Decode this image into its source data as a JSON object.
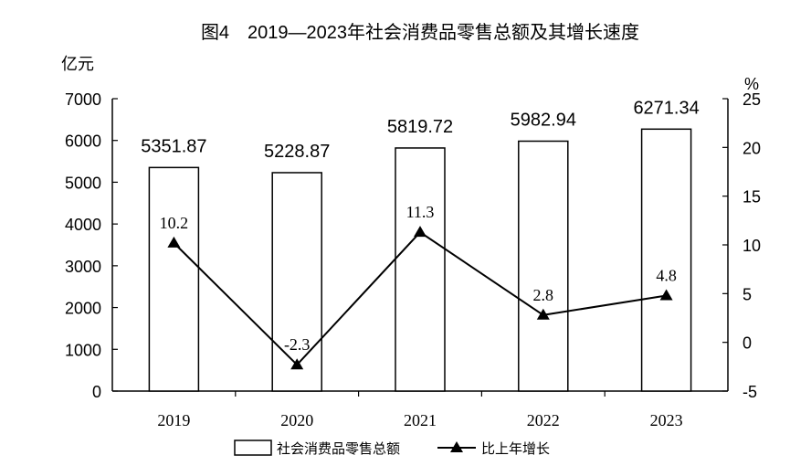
{
  "chart_data": {
    "type": "bar+line",
    "title": "图4　2019—2023年社会消费品零售总额及其增长速度",
    "categories": [
      "2019",
      "2020",
      "2021",
      "2022",
      "2023"
    ],
    "series": [
      {
        "name": "社会消费品零售总额",
        "type": "bar",
        "axis": "left",
        "values": [
          5351.87,
          5228.87,
          5819.72,
          5982.94,
          6271.34
        ],
        "labels": [
          "5351.87",
          "5228.87",
          "5819.72",
          "5982.94",
          "6271.34"
        ]
      },
      {
        "name": "比上年增长",
        "type": "line",
        "axis": "right",
        "marker": "triangle",
        "values": [
          10.2,
          -2.3,
          11.3,
          2.8,
          4.8
        ],
        "labels": [
          "10.2",
          "-2.3",
          "11.3",
          "2.8",
          "4.8"
        ]
      }
    ],
    "y_left": {
      "unit": "亿元",
      "ylim": [
        0,
        7000
      ],
      "ticks": [
        "0",
        "1000",
        "2000",
        "3000",
        "4000",
        "5000",
        "6000",
        "7000"
      ]
    },
    "y_right": {
      "unit": "%",
      "ylim": [
        -5,
        25
      ],
      "ticks": [
        "-5",
        "0",
        "5",
        "10",
        "15",
        "20",
        "25"
      ]
    },
    "grid": false,
    "legend_position": "bottom",
    "colors": {
      "bar_fill": "#ffffff",
      "bar_stroke": "#000000",
      "line": "#000000"
    }
  }
}
